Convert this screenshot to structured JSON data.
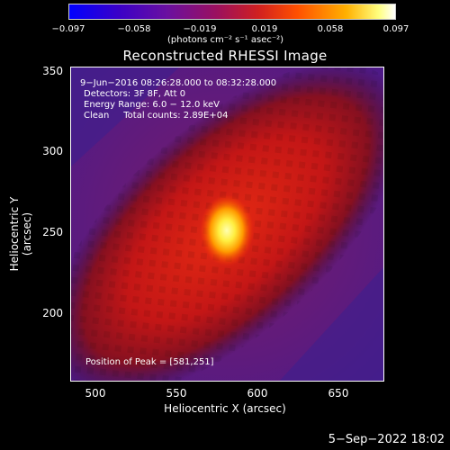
{
  "colorbar": {
    "ticks": [
      "−0.097",
      "−0.058",
      "−0.019",
      "0.019",
      "0.058",
      "0.097"
    ],
    "unit": "(photons cm⁻² s⁻¹ asec⁻²)"
  },
  "title": "Reconstructed RHESSI Image",
  "info": {
    "time": "9−Jun−2016 08:26:28.000 to 08:32:28.000",
    "detectors": "Detectors: 3F 8F, Att 0",
    "energy": "Energy Range: 6.0 − 12.0 keV",
    "clean": "Clean     Total counts: 2.89E+04"
  },
  "peak": "Position of Peak = [581,251]",
  "axes": {
    "x_ticks": [
      "500",
      "550",
      "600",
      "650"
    ],
    "y_ticks": [
      "350",
      "300",
      "250",
      "200"
    ],
    "xlabel": "Heliocentric X (arcsec)",
    "ylabel": "Heliocentric Y (arcsec)"
  },
  "footer_date": "5−Sep−2022 18:02"
}
